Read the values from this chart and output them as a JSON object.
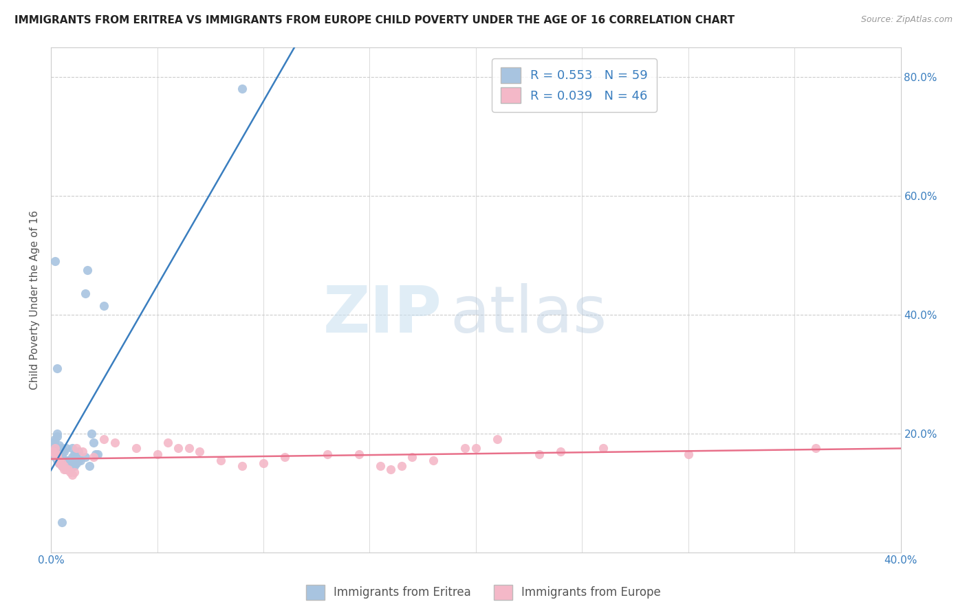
{
  "title": "IMMIGRANTS FROM ERITREA VS IMMIGRANTS FROM EUROPE CHILD POVERTY UNDER THE AGE OF 16 CORRELATION CHART",
  "source": "Source: ZipAtlas.com",
  "ylabel": "Child Poverty Under the Age of 16",
  "xlim": [
    0.0,
    0.4
  ],
  "ylim": [
    0.0,
    0.85
  ],
  "series1_color": "#a8c4e0",
  "series2_color": "#f4b8c8",
  "line1_color": "#3a7ebf",
  "line2_color": "#e8708a",
  "R1": 0.553,
  "N1": 59,
  "R2": 0.039,
  "N2": 46,
  "legend_label1": "Immigrants from Eritrea",
  "legend_label2": "Immigrants from Europe",
  "watermark_zip": "ZIP",
  "watermark_atlas": "atlas",
  "eritrea_x": [
    0.001,
    0.001,
    0.001,
    0.001,
    0.002,
    0.002,
    0.002,
    0.002,
    0.002,
    0.002,
    0.003,
    0.003,
    0.003,
    0.003,
    0.003,
    0.003,
    0.003,
    0.004,
    0.004,
    0.004,
    0.004,
    0.005,
    0.005,
    0.005,
    0.005,
    0.005,
    0.006,
    0.006,
    0.006,
    0.007,
    0.007,
    0.007,
    0.008,
    0.008,
    0.009,
    0.009,
    0.01,
    0.01,
    0.01,
    0.011,
    0.011,
    0.012,
    0.012,
    0.013,
    0.013,
    0.014,
    0.016,
    0.016,
    0.017,
    0.018,
    0.019,
    0.02,
    0.021,
    0.022,
    0.025,
    0.09,
    0.002,
    0.003,
    0.005
  ],
  "eritrea_y": [
    0.165,
    0.17,
    0.175,
    0.185,
    0.16,
    0.165,
    0.17,
    0.175,
    0.18,
    0.19,
    0.155,
    0.16,
    0.165,
    0.17,
    0.175,
    0.195,
    0.2,
    0.15,
    0.16,
    0.165,
    0.18,
    0.145,
    0.155,
    0.16,
    0.165,
    0.175,
    0.145,
    0.155,
    0.17,
    0.14,
    0.155,
    0.175,
    0.14,
    0.155,
    0.14,
    0.155,
    0.145,
    0.16,
    0.175,
    0.145,
    0.165,
    0.15,
    0.165,
    0.155,
    0.17,
    0.155,
    0.435,
    0.16,
    0.475,
    0.145,
    0.2,
    0.185,
    0.165,
    0.165,
    0.415,
    0.78,
    0.49,
    0.31,
    0.05
  ],
  "europe_x": [
    0.001,
    0.002,
    0.002,
    0.003,
    0.003,
    0.004,
    0.004,
    0.005,
    0.005,
    0.006,
    0.006,
    0.007,
    0.008,
    0.009,
    0.01,
    0.011,
    0.012,
    0.015,
    0.02,
    0.025,
    0.03,
    0.04,
    0.05,
    0.055,
    0.06,
    0.065,
    0.07,
    0.08,
    0.09,
    0.1,
    0.11,
    0.13,
    0.145,
    0.155,
    0.16,
    0.165,
    0.17,
    0.18,
    0.195,
    0.2,
    0.21,
    0.23,
    0.24,
    0.26,
    0.3,
    0.36
  ],
  "europe_y": [
    0.17,
    0.165,
    0.175,
    0.16,
    0.165,
    0.15,
    0.155,
    0.145,
    0.15,
    0.14,
    0.145,
    0.14,
    0.14,
    0.135,
    0.13,
    0.135,
    0.175,
    0.17,
    0.16,
    0.19,
    0.185,
    0.175,
    0.165,
    0.185,
    0.175,
    0.175,
    0.17,
    0.155,
    0.145,
    0.15,
    0.16,
    0.165,
    0.165,
    0.145,
    0.14,
    0.145,
    0.16,
    0.155,
    0.175,
    0.175,
    0.19,
    0.165,
    0.17,
    0.175,
    0.165,
    0.175
  ]
}
